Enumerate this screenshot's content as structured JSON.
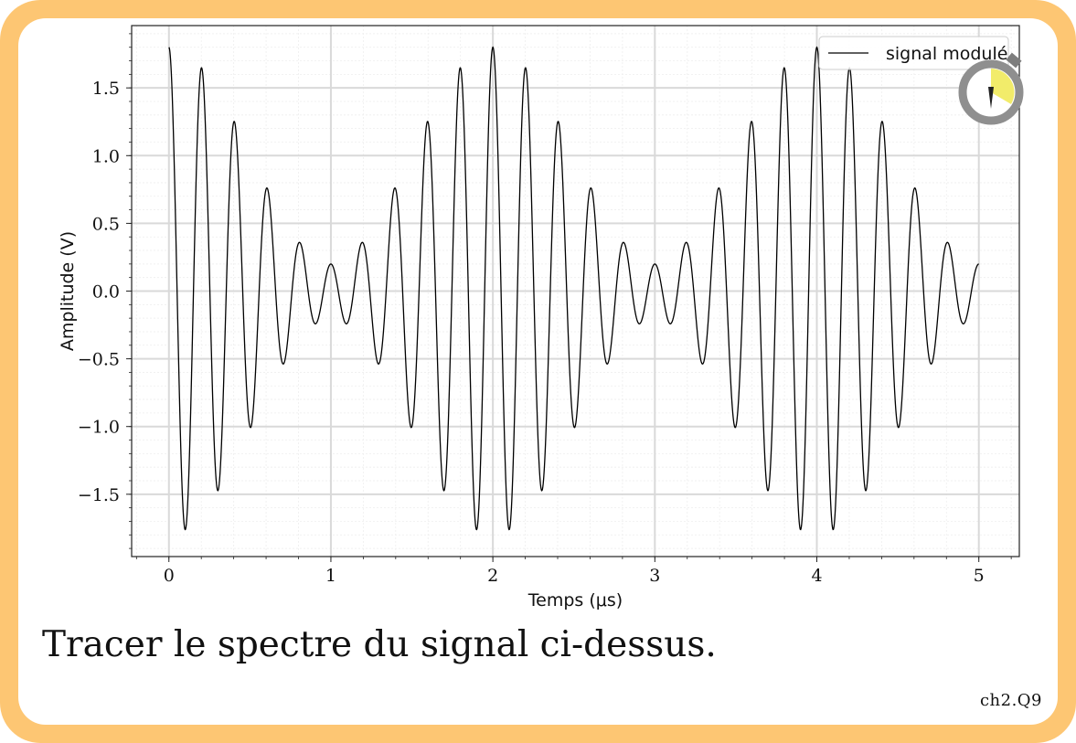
{
  "question": "Tracer le spectre du signal ci-dessus.",
  "code": "ch2.Q9",
  "chart_data": {
    "type": "line",
    "xlabel": "Temps (μs)",
    "ylabel": "Amplitude (V)",
    "xlim": [
      -0.23,
      5.25
    ],
    "ylim": [
      -1.96,
      1.96
    ],
    "xticks": [
      0,
      1,
      2,
      3,
      4,
      5
    ],
    "xtick_labels": [
      "0",
      "1",
      "2",
      "3",
      "4",
      "5"
    ],
    "yticks": [
      -1.5,
      -1.0,
      -0.5,
      0.0,
      0.5,
      1.0,
      1.5
    ],
    "ytick_labels": [
      "−1.5",
      "−1.0",
      "−0.5",
      "0.0",
      "0.5",
      "1.0",
      "1.5"
    ],
    "grid": true,
    "legend": {
      "position": "top-right",
      "entries": [
        "signal modulé"
      ]
    },
    "series": [
      {
        "name": "signal modulé",
        "color": "#000000",
        "x_range": [
          0,
          5
        ],
        "points": 2400,
        "model": "1.0*cos(2*pi*5*t) + 0.3*cos(2*pi*5.5*t) + 0.5*cos(2*pi*4.5*t)",
        "unit_x": "μs",
        "unit_y": "V"
      }
    ]
  },
  "colors": {
    "frame": "#fdc673",
    "grid_major": "#d9d9d9",
    "grid_minor": "#eeeeee",
    "clock_face": "#f2ec6a",
    "clock_ring": "#8f8f8f"
  },
  "icon": "stopwatch-icon"
}
